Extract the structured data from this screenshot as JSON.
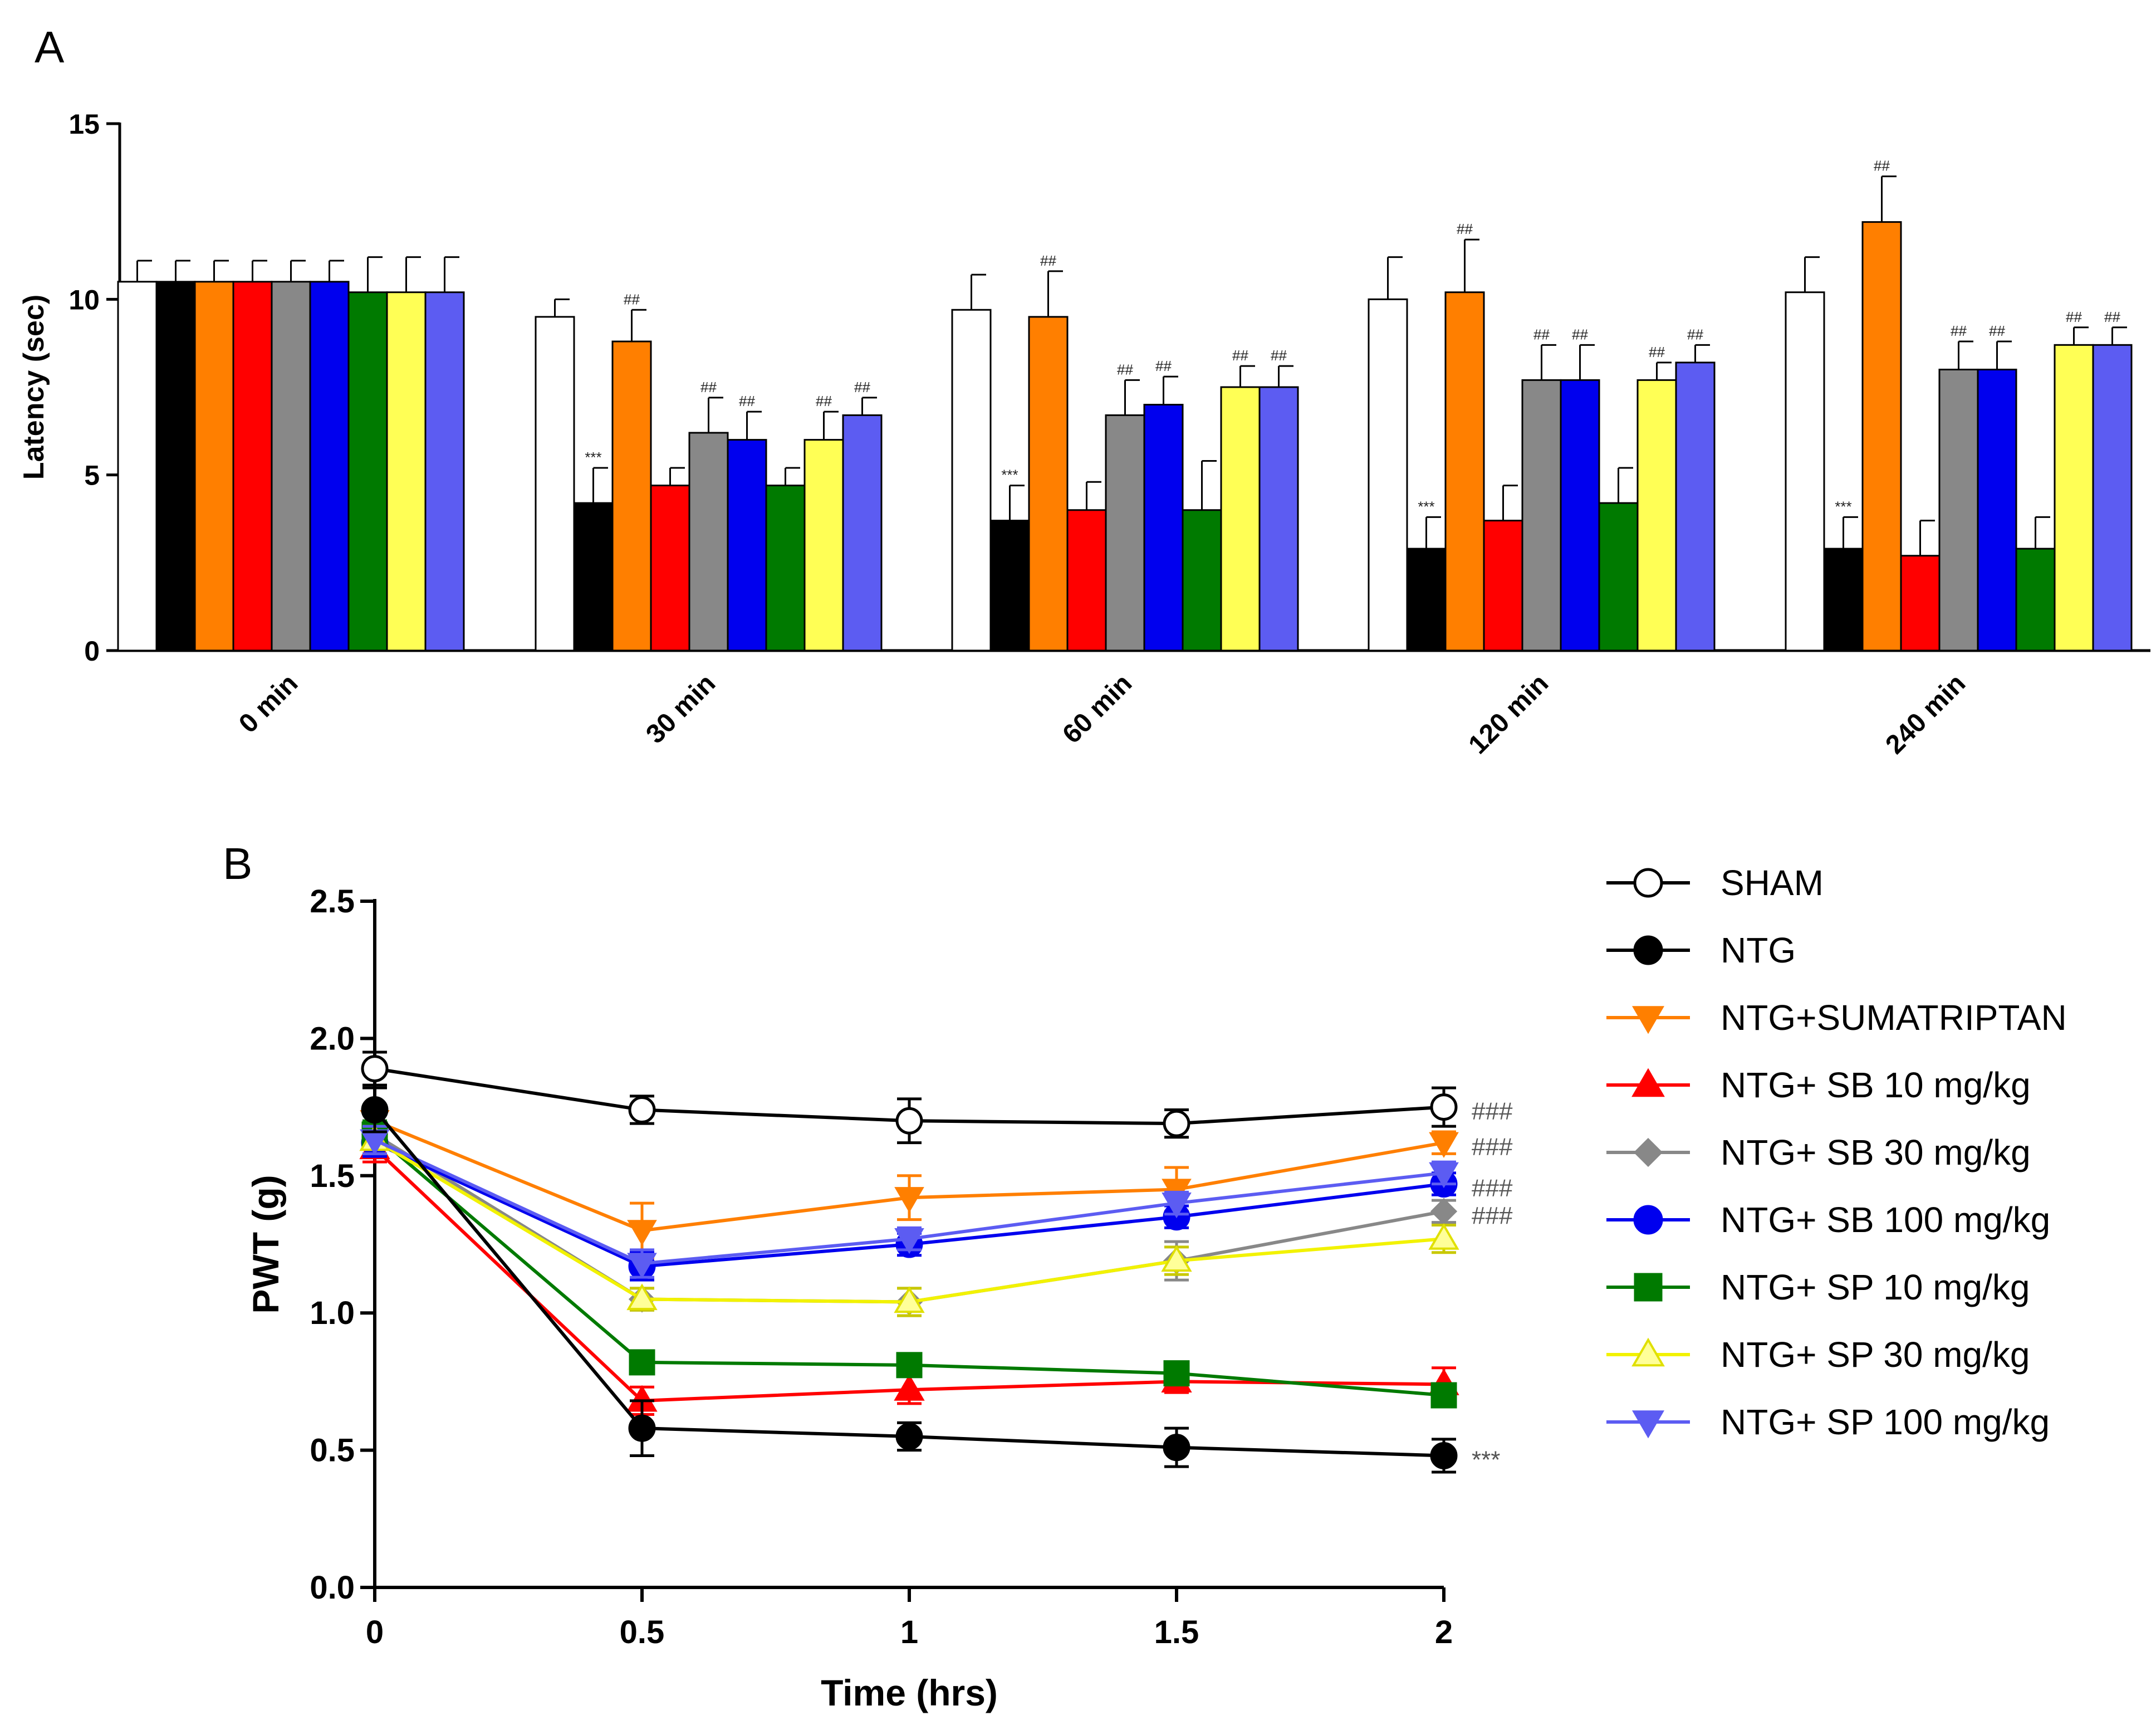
{
  "figure": {
    "panel_a_label": "A",
    "panel_b_label": "B"
  },
  "colors": {
    "SHAM": "#ffffff",
    "NTG": "#000000",
    "NTG+SUMATRIPTAN": "#ff7f00",
    "NTG+ SB 10 mg/kg": "#ff0000",
    "NTG+ SB 30 mg/kg": "#888888",
    "NTG+ SB 100 mg/kg": "#0000ee",
    "NTG+ SP 10 mg/kg": "#007a00",
    "NTG+ SP 30 mg/kg": "#ffff55",
    "NTG+ SP 100 mg/kg": "#5c5cf2"
  },
  "chart_data": [
    {
      "type": "bar",
      "panel": "A",
      "ylabel": "Latency (sec)",
      "xlabel": "",
      "ylim": [
        0,
        15
      ],
      "yticks": [
        0,
        5,
        10,
        15
      ],
      "categories": [
        "0 min",
        "30 min",
        "60 min",
        "120 min",
        "240 min"
      ],
      "series": [
        {
          "name": "SHAM",
          "values": [
            10.5,
            9.5,
            9.7,
            10.0,
            10.2
          ],
          "errors": [
            0.6,
            0.5,
            1.0,
            1.2,
            1.0
          ],
          "annotations": [
            "",
            "",
            "",
            "",
            ""
          ]
        },
        {
          "name": "NTG",
          "values": [
            10.5,
            4.2,
            3.7,
            2.9,
            2.9
          ],
          "errors": [
            0.6,
            1.0,
            1.0,
            0.9,
            0.9
          ],
          "annotations": [
            "",
            "***",
            "***",
            "***",
            "***"
          ]
        },
        {
          "name": "NTG+SUMATRIPTAN",
          "values": [
            10.5,
            8.8,
            9.5,
            10.2,
            12.2
          ],
          "errors": [
            0.6,
            0.9,
            1.3,
            1.5,
            1.3
          ],
          "annotations": [
            "",
            "##",
            "##",
            "##",
            "##"
          ]
        },
        {
          "name": "NTG+ SB 10 mg/kg",
          "values": [
            10.5,
            4.7,
            4.0,
            3.7,
            2.7
          ],
          "errors": [
            0.6,
            0.5,
            0.8,
            1.0,
            1.0
          ],
          "annotations": [
            "",
            "",
            "",
            "",
            ""
          ]
        },
        {
          "name": "NTG+ SB 30 mg/kg",
          "values": [
            10.5,
            6.2,
            6.7,
            7.7,
            8.0
          ],
          "errors": [
            0.6,
            1.0,
            1.0,
            1.0,
            0.8
          ],
          "annotations": [
            "",
            "##",
            "##",
            "##",
            "##"
          ]
        },
        {
          "name": "NTG+ SB 100 mg/kg",
          "values": [
            10.5,
            6.0,
            7.0,
            7.7,
            8.0
          ],
          "errors": [
            0.6,
            0.8,
            0.8,
            1.0,
            0.8
          ],
          "annotations": [
            "",
            "##",
            "##",
            "##",
            "##"
          ]
        },
        {
          "name": "NTG+ SP 10 mg/kg",
          "values": [
            10.2,
            4.7,
            4.0,
            4.2,
            2.9
          ],
          "errors": [
            1.0,
            0.5,
            1.4,
            1.0,
            0.9
          ],
          "annotations": [
            "",
            "",
            "",
            "",
            ""
          ]
        },
        {
          "name": "NTG+ SP 30 mg/kg",
          "values": [
            10.2,
            6.0,
            7.5,
            7.7,
            8.7
          ],
          "errors": [
            1.0,
            0.8,
            0.6,
            0.5,
            0.5
          ],
          "annotations": [
            "",
            "##",
            "##",
            "##",
            "##"
          ]
        },
        {
          "name": "NTG+ SP 100 mg/kg",
          "values": [
            10.2,
            6.7,
            7.5,
            8.2,
            8.7
          ],
          "errors": [
            1.0,
            0.5,
            0.6,
            0.5,
            0.5
          ],
          "annotations": [
            "",
            "##",
            "##",
            "##",
            "##"
          ]
        }
      ]
    },
    {
      "type": "line",
      "panel": "B",
      "xlabel": "Time (hrs)",
      "ylabel": "PWT (g)",
      "xlim": [
        0,
        2
      ],
      "ylim": [
        0,
        2.5
      ],
      "xticks": [
        0,
        0.5,
        1,
        1.5,
        2
      ],
      "xtick_labels": [
        "0",
        "0.5",
        "1",
        "1.5",
        "2"
      ],
      "yticks": [
        0.0,
        0.5,
        1.0,
        1.5,
        2.0,
        2.5
      ],
      "ytick_labels": [
        "0.0",
        "0.5",
        "1.0",
        "1.5",
        "2.0",
        "2.5"
      ],
      "x": [
        0,
        0.5,
        1,
        1.5,
        2
      ],
      "series": [
        {
          "name": "SHAM",
          "marker": "circle-open",
          "values": [
            1.89,
            1.74,
            1.7,
            1.69,
            1.75
          ],
          "errors": [
            0.06,
            0.05,
            0.08,
            0.05,
            0.07
          ],
          "end_annotation": "###"
        },
        {
          "name": "NTG",
          "marker": "circle",
          "values": [
            1.74,
            0.58,
            0.55,
            0.51,
            0.48
          ],
          "errors": [
            0.08,
            0.1,
            0.05,
            0.07,
            0.06
          ],
          "end_annotation": "***"
        },
        {
          "name": "NTG+SUMATRIPTAN",
          "marker": "triangle-down",
          "values": [
            1.7,
            1.3,
            1.42,
            1.45,
            1.62
          ],
          "errors": [
            0.05,
            0.1,
            0.08,
            0.08,
            0.04
          ],
          "end_annotation": "###"
        },
        {
          "name": "NTG+ SB 10 mg/kg",
          "marker": "triangle-up",
          "values": [
            1.6,
            0.68,
            0.72,
            0.75,
            0.74
          ],
          "errors": [
            0.05,
            0.05,
            0.05,
            0.04,
            0.06
          ],
          "end_annotation": ""
        },
        {
          "name": "NTG+ SB 30 mg/kg",
          "marker": "diamond",
          "values": [
            1.65,
            1.05,
            1.04,
            1.19,
            1.37
          ],
          "errors": [
            0.05,
            0.04,
            0.05,
            0.07,
            0.04
          ],
          "end_annotation": "###"
        },
        {
          "name": "NTG+ SB 100 mg/kg",
          "marker": "circle",
          "values": [
            1.62,
            1.17,
            1.25,
            1.35,
            1.47
          ],
          "errors": [
            0.05,
            0.05,
            0.04,
            0.04,
            0.04
          ],
          "end_annotation": "###"
        },
        {
          "name": "NTG+ SP 10 mg/kg",
          "marker": "square",
          "values": [
            1.65,
            0.82,
            0.81,
            0.78,
            0.7
          ],
          "errors": [
            0.05,
            0.04,
            0.04,
            0.03,
            0.04
          ],
          "end_annotation": ""
        },
        {
          "name": "NTG+ SP 30 mg/kg",
          "marker": "triangle-up-open",
          "values": [
            1.63,
            1.05,
            1.04,
            1.19,
            1.27
          ],
          "errors": [
            0.05,
            0.04,
            0.05,
            0.05,
            0.05
          ],
          "end_annotation": ""
        },
        {
          "name": "NTG+ SP 100 mg/kg",
          "marker": "triangle-down",
          "values": [
            1.63,
            1.18,
            1.27,
            1.4,
            1.51
          ],
          "errors": [
            0.05,
            0.05,
            0.04,
            0.04,
            0.04
          ],
          "end_annotation": ""
        }
      ],
      "legend": [
        "SHAM",
        "NTG",
        "NTG+SUMATRIPTAN",
        "NTG+ SB 10 mg/kg",
        "NTG+ SB 30 mg/kg",
        "NTG+ SB 100 mg/kg",
        "NTG+ SP 10 mg/kg",
        "NTG+ SP 30 mg/kg",
        "NTG+ SP 100 mg/kg"
      ],
      "legend_position": "right"
    }
  ]
}
